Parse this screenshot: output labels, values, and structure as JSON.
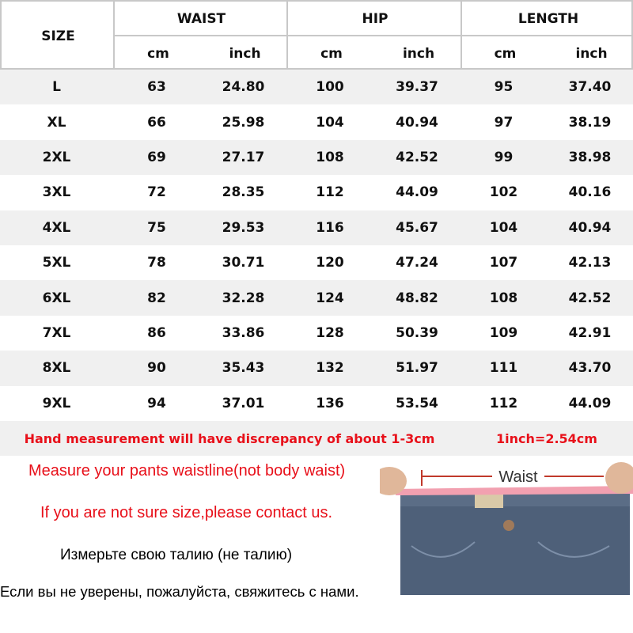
{
  "header": {
    "size": "SIZE",
    "groups": [
      "WAIST",
      "HIP",
      "LENGTH"
    ],
    "units": [
      "cm",
      "inch",
      "cm",
      "inch",
      "cm",
      "inch"
    ]
  },
  "rows": [
    [
      "L",
      "63",
      "24.80",
      "100",
      "39.37",
      "95",
      "37.40"
    ],
    [
      "XL",
      "66",
      "25.98",
      "104",
      "40.94",
      "97",
      "38.19"
    ],
    [
      "2XL",
      "69",
      "27.17",
      "108",
      "42.52",
      "99",
      "38.98"
    ],
    [
      "3XL",
      "72",
      "28.35",
      "112",
      "44.09",
      "102",
      "40.16"
    ],
    [
      "4XL",
      "75",
      "29.53",
      "116",
      "45.67",
      "104",
      "40.94"
    ],
    [
      "5XL",
      "78",
      "30.71",
      "120",
      "47.24",
      "107",
      "42.13"
    ],
    [
      "6XL",
      "82",
      "32.28",
      "124",
      "48.82",
      "108",
      "42.52"
    ],
    [
      "7XL",
      "86",
      "33.86",
      "128",
      "50.39",
      "109",
      "42.91"
    ],
    [
      "8XL",
      "90",
      "35.43",
      "132",
      "51.97",
      "111",
      "43.70"
    ],
    [
      "9XL",
      "94",
      "37.01",
      "136",
      "53.54",
      "112",
      "44.09"
    ]
  ],
  "note": {
    "discrepancy": "Hand measurement will have discrepancy of about 1-3cm",
    "conversion": "1inch=2.54cm"
  },
  "instructions": {
    "measure": "Measure your pants waistline(not body waist)",
    "contact": "If you are not sure size,please contact us.",
    "measure_ru": "Измерьте свою талию (не талию)",
    "contact_ru": "Если вы не уверены, пожалуйста, свяжитесь с нами."
  },
  "photo": {
    "label": "Waist"
  },
  "colors": {
    "accent": "#e8101a",
    "stripe": "#f0f0f0",
    "border": "#c8c8c8"
  }
}
